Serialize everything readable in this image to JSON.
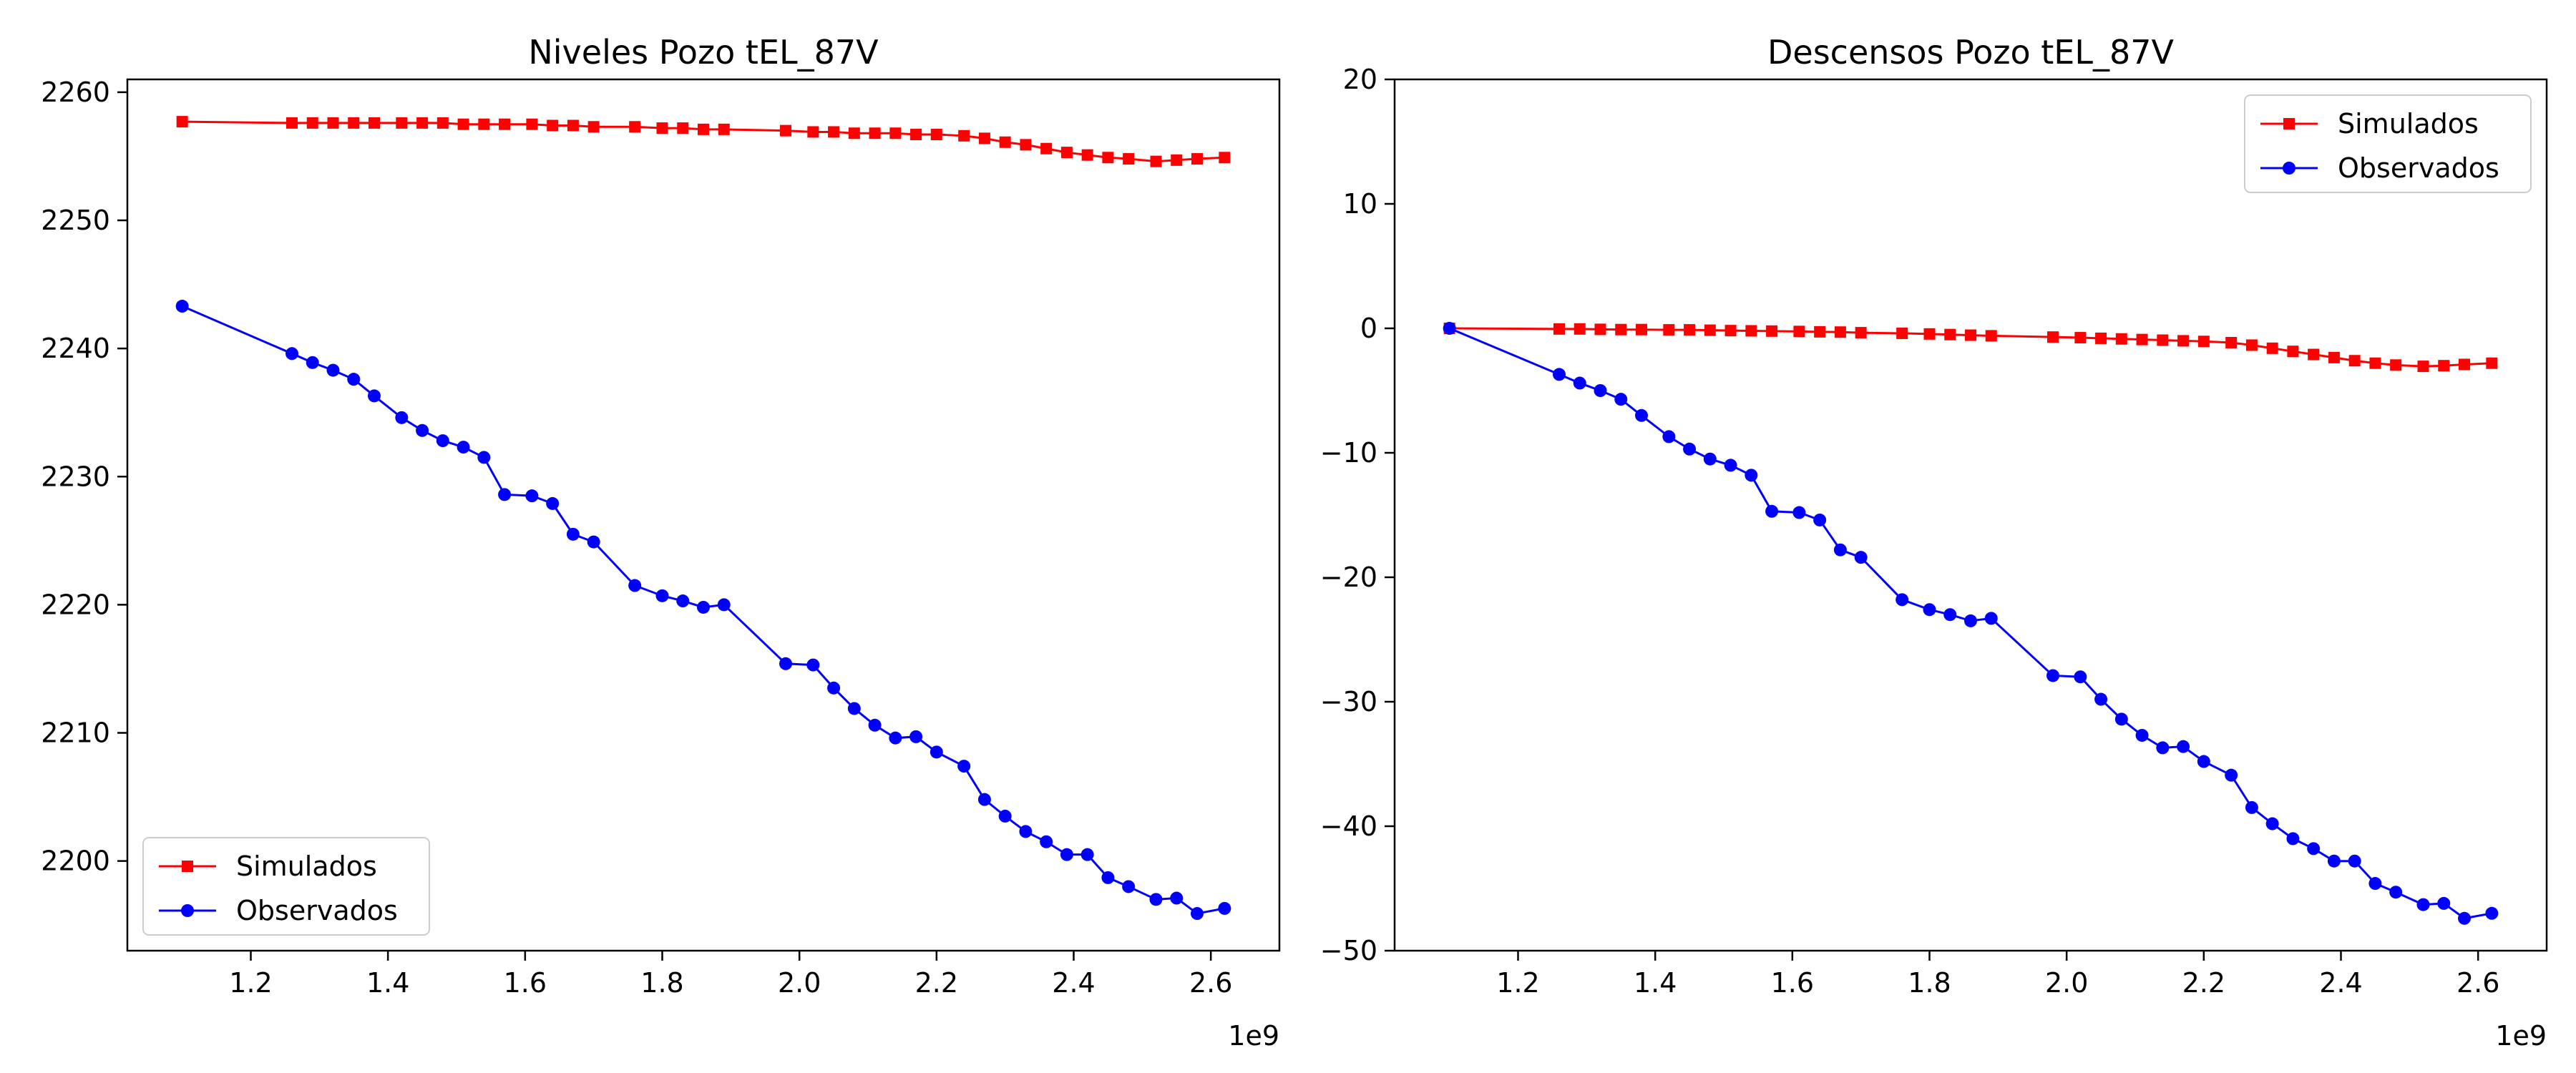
{
  "chart_data": [
    {
      "type": "line",
      "title": "Niveles Pozo tEL_87V",
      "xlabel": "",
      "ylabel": "",
      "x_offset_label": "1e9",
      "xlim": [
        1.02,
        2.7
      ],
      "ylim": [
        2193,
        2261
      ],
      "xticks": [
        1.2,
        1.4,
        1.6,
        1.8,
        2.0,
        2.2,
        2.4,
        2.6
      ],
      "yticks": [
        2200,
        2210,
        2220,
        2230,
        2240,
        2250,
        2260
      ],
      "grid": false,
      "legend_position": "lower-left",
      "x": [
        1.1,
        1.26,
        1.29,
        1.32,
        1.35,
        1.38,
        1.42,
        1.45,
        1.48,
        1.51,
        1.54,
        1.57,
        1.61,
        1.64,
        1.67,
        1.7,
        1.76,
        1.8,
        1.83,
        1.86,
        1.89,
        1.98,
        2.02,
        2.05,
        2.08,
        2.11,
        2.14,
        2.17,
        2.2,
        2.24,
        2.27,
        2.3,
        2.33,
        2.36,
        2.39,
        2.42,
        2.45,
        2.48,
        2.52,
        2.55,
        2.58,
        2.62
      ],
      "series": [
        {
          "name": "Simulados",
          "color": "#ff0000",
          "marker": "square",
          "values": [
            2257.7,
            2257.6,
            2257.6,
            2257.6,
            2257.6,
            2257.6,
            2257.6,
            2257.6,
            2257.6,
            2257.5,
            2257.5,
            2257.5,
            2257.5,
            2257.4,
            2257.4,
            2257.3,
            2257.3,
            2257.2,
            2257.2,
            2257.1,
            2257.1,
            2257.0,
            2256.9,
            2256.9,
            2256.8,
            2256.8,
            2256.8,
            2256.7,
            2256.7,
            2256.6,
            2256.4,
            2256.1,
            2255.9,
            2255.6,
            2255.3,
            2255.1,
            2254.9,
            2254.8,
            2254.6,
            2254.7,
            2254.8,
            2254.9
          ]
        },
        {
          "name": "Observados",
          "color": "#0000ff",
          "marker": "circle",
          "values": [
            2243.3,
            2239.6,
            2238.9,
            2238.3,
            2237.6,
            2236.3,
            2234.6,
            2233.6,
            2232.8,
            2232.3,
            2231.5,
            2228.6,
            2228.5,
            2227.9,
            2225.5,
            2224.9,
            2221.5,
            2220.7,
            2220.3,
            2219.8,
            2220.0,
            2215.4,
            2215.3,
            2213.5,
            2211.9,
            2210.6,
            2209.6,
            2209.7,
            2208.5,
            2207.4,
            2204.8,
            2203.5,
            2202.3,
            2201.5,
            2200.5,
            2200.5,
            2198.7,
            2198.0,
            2197.0,
            2197.1,
            2195.9,
            2196.3
          ]
        }
      ]
    },
    {
      "type": "line",
      "title": "Descensos Pozo tEL_87V",
      "xlabel": "",
      "ylabel": "",
      "x_offset_label": "1e9",
      "xlim": [
        1.02,
        2.7
      ],
      "ylim": [
        -50,
        20
      ],
      "xticks": [
        1.2,
        1.4,
        1.6,
        1.8,
        2.0,
        2.2,
        2.4,
        2.6
      ],
      "yticks": [
        -50,
        -40,
        -30,
        -20,
        -10,
        0,
        10,
        20
      ],
      "grid": false,
      "legend_position": "upper-right",
      "x": [
        1.1,
        1.26,
        1.29,
        1.32,
        1.35,
        1.38,
        1.42,
        1.45,
        1.48,
        1.51,
        1.54,
        1.57,
        1.61,
        1.64,
        1.67,
        1.7,
        1.76,
        1.8,
        1.83,
        1.86,
        1.89,
        1.98,
        2.02,
        2.05,
        2.08,
        2.11,
        2.14,
        2.17,
        2.2,
        2.24,
        2.27,
        2.3,
        2.33,
        2.36,
        2.39,
        2.42,
        2.45,
        2.48,
        2.52,
        2.55,
        2.58,
        2.62
      ],
      "series": [
        {
          "name": "Simulados",
          "color": "#ff0000",
          "marker": "square",
          "values": [
            0.0,
            -0.05,
            -0.05,
            -0.08,
            -0.1,
            -0.1,
            -0.12,
            -0.12,
            -0.15,
            -0.18,
            -0.2,
            -0.22,
            -0.25,
            -0.28,
            -0.3,
            -0.35,
            -0.4,
            -0.45,
            -0.5,
            -0.55,
            -0.6,
            -0.7,
            -0.75,
            -0.8,
            -0.85,
            -0.9,
            -0.95,
            -1.0,
            -1.05,
            -1.15,
            -1.35,
            -1.6,
            -1.85,
            -2.1,
            -2.35,
            -2.6,
            -2.8,
            -2.95,
            -3.05,
            -3.0,
            -2.9,
            -2.8
          ]
        },
        {
          "name": "Observados",
          "color": "#0000ff",
          "marker": "circle",
          "values": [
            0.0,
            -3.7,
            -4.4,
            -5.0,
            -5.7,
            -7.0,
            -8.7,
            -9.7,
            -10.5,
            -11.0,
            -11.8,
            -14.7,
            -14.8,
            -15.4,
            -17.8,
            -18.4,
            -21.8,
            -22.6,
            -23.0,
            -23.5,
            -23.3,
            -27.9,
            -28.0,
            -29.8,
            -31.4,
            -32.7,
            -33.7,
            -33.6,
            -34.8,
            -35.9,
            -38.5,
            -39.8,
            -41.0,
            -41.8,
            -42.8,
            -42.8,
            -44.6,
            -45.3,
            -46.3,
            -46.2,
            -47.4,
            -47.0
          ]
        }
      ]
    }
  ]
}
